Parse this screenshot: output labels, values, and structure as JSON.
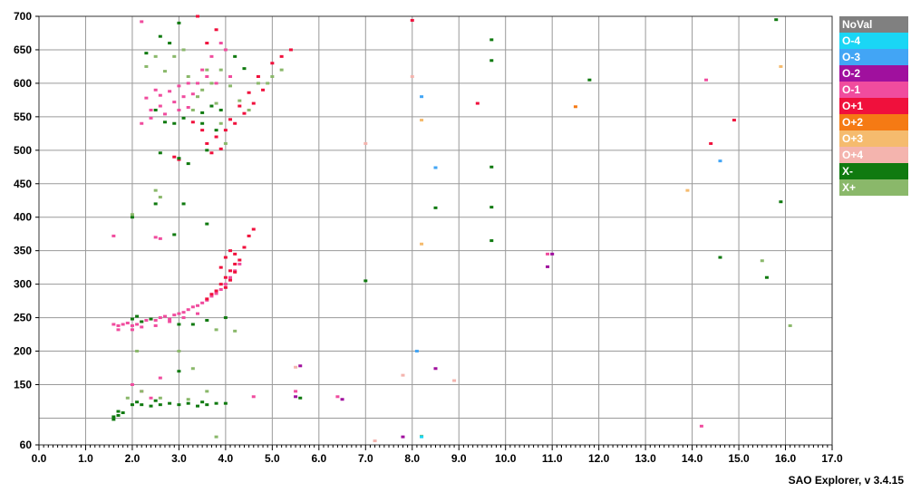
{
  "chart_data": {
    "type": "scatter",
    "title": "",
    "xlabel": "",
    "ylabel": "",
    "xlim": [
      0,
      17
    ],
    "ylim": [
      60,
      700
    ],
    "grid": true,
    "legend_placement": "right",
    "x_ticks": [
      0,
      1,
      2,
      3,
      4,
      5,
      6,
      7,
      8,
      9,
      10,
      11,
      12,
      13,
      14,
      15,
      16,
      17
    ],
    "x_tick_labels": [
      "0.0",
      "1.0",
      "2.0",
      "3.0",
      "4.0",
      "5.0",
      "6.0",
      "7.0",
      "8.0",
      "9.0",
      "10.0",
      "11.0",
      "12.0",
      "13.0",
      "14.0",
      "15.0",
      "16.0",
      "17.0"
    ],
    "y_ticks": [
      60,
      150,
      200,
      250,
      300,
      350,
      400,
      450,
      500,
      550,
      600,
      650,
      700
    ],
    "y_tick_labels": [
      "60",
      "150",
      "200",
      "250",
      "300",
      "350",
      "400",
      "450",
      "500",
      "550",
      "600",
      "650",
      "700"
    ],
    "y_grid": [
      100,
      150,
      200,
      250,
      300,
      350,
      400,
      450,
      500,
      550,
      600,
      650
    ],
    "legend": [
      {
        "label": "NoVal",
        "color": "#808080"
      },
      {
        "label": "O-4",
        "color": "#1ad6f5"
      },
      {
        "label": "O-3",
        "color": "#42a5f5"
      },
      {
        "label": "O-2",
        "color": "#a0109e"
      },
      {
        "label": "O-1",
        "color": "#f04c9e"
      },
      {
        "label": "O+1",
        "color": "#f0103c"
      },
      {
        "label": "O+2",
        "color": "#f57a14"
      },
      {
        "label": "O+3",
        "color": "#f5bb6e"
      },
      {
        "label": "O+4",
        "color": "#f4b4ae"
      },
      {
        "label": "X-",
        "color": "#107a10"
      },
      {
        "label": "X+",
        "color": "#8ab86a"
      }
    ],
    "series": [
      {
        "name": "O-1",
        "color": "#f04c9e",
        "points": [
          [
            1.6,
            240
          ],
          [
            1.7,
            238
          ],
          [
            1.8,
            240
          ],
          [
            1.9,
            242
          ],
          [
            2.0,
            238
          ],
          [
            2.1,
            240
          ],
          [
            2.2,
            244
          ],
          [
            2.3,
            246
          ],
          [
            2.4,
            248
          ],
          [
            2.5,
            246
          ],
          [
            2.6,
            250
          ],
          [
            2.7,
            252
          ],
          [
            2.8,
            248
          ],
          [
            2.9,
            254
          ],
          [
            3.0,
            256
          ],
          [
            3.1,
            258
          ],
          [
            3.2,
            262
          ],
          [
            3.3,
            266
          ],
          [
            3.4,
            268
          ],
          [
            3.5,
            272
          ],
          [
            3.6,
            276
          ],
          [
            3.7,
            282
          ],
          [
            3.8,
            286
          ],
          [
            3.9,
            292
          ],
          [
            4.0,
            300
          ],
          [
            4.1,
            310
          ],
          [
            4.2,
            320
          ],
          [
            4.3,
            330
          ],
          [
            2.2,
            236
          ],
          [
            2.5,
            238
          ],
          [
            2.8,
            244
          ],
          [
            3.1,
            250
          ],
          [
            3.4,
            256
          ],
          [
            1.7,
            232
          ],
          [
            2.0,
            232
          ],
          [
            2.3,
            578
          ],
          [
            2.5,
            590
          ],
          [
            2.6,
            582
          ],
          [
            2.8,
            588
          ],
          [
            3.0,
            596
          ],
          [
            3.2,
            600
          ],
          [
            2.4,
            560
          ],
          [
            2.6,
            566
          ],
          [
            2.9,
            572
          ],
          [
            3.1,
            580
          ],
          [
            3.3,
            584
          ],
          [
            3.5,
            620
          ],
          [
            3.7,
            640
          ],
          [
            3.9,
            660
          ],
          [
            4.0,
            650
          ],
          [
            3.8,
            600
          ],
          [
            4.1,
            610
          ],
          [
            2.2,
            540
          ],
          [
            2.4,
            548
          ],
          [
            2.7,
            554
          ],
          [
            3.0,
            560
          ],
          [
            3.2,
            564
          ],
          [
            3.6,
            610
          ],
          [
            3.4,
            600
          ],
          [
            2.0,
            150
          ],
          [
            2.2,
            140
          ],
          [
            2.4,
            130
          ],
          [
            2.6,
            160
          ],
          [
            1.6,
            372
          ],
          [
            2.2,
            692
          ],
          [
            4.6,
            132
          ],
          [
            5.5,
            140
          ],
          [
            6.4,
            132
          ],
          [
            14.3,
            605
          ],
          [
            14.2,
            88
          ],
          [
            10.9,
            345
          ],
          [
            2.5,
            370
          ],
          [
            2.6,
            368
          ]
        ]
      },
      {
        "name": "O+1",
        "color": "#f0103c",
        "points": [
          [
            3.8,
            290
          ],
          [
            3.9,
            300
          ],
          [
            4.0,
            310
          ],
          [
            4.1,
            320
          ],
          [
            4.2,
            330
          ],
          [
            4.0,
            340
          ],
          [
            4.1,
            350
          ],
          [
            4.2,
            345
          ],
          [
            3.9,
            325
          ],
          [
            4.0,
            295
          ],
          [
            3.7,
            285
          ],
          [
            4.3,
            336
          ],
          [
            4.1,
            306
          ],
          [
            4.4,
            355
          ],
          [
            4.5,
            372
          ],
          [
            4.6,
            382
          ],
          [
            3.6,
            278
          ],
          [
            4.2,
            318
          ],
          [
            3.6,
            510
          ],
          [
            3.8,
            520
          ],
          [
            4.0,
            530
          ],
          [
            4.2,
            540
          ],
          [
            4.4,
            555
          ],
          [
            4.6,
            570
          ],
          [
            4.8,
            590
          ],
          [
            3.7,
            496
          ],
          [
            4.1,
            546
          ],
          [
            4.3,
            566
          ],
          [
            4.5,
            586
          ],
          [
            3.9,
            502
          ],
          [
            4.7,
            610
          ],
          [
            5.0,
            630
          ],
          [
            5.2,
            640
          ],
          [
            5.4,
            650
          ],
          [
            3.5,
            530
          ],
          [
            3.3,
            542
          ],
          [
            2.9,
            490
          ],
          [
            3.0,
            486
          ],
          [
            3.8,
            680
          ],
          [
            3.6,
            660
          ],
          [
            3.4,
            700
          ],
          [
            14.4,
            510
          ],
          [
            14.9,
            545
          ],
          [
            9.4,
            570
          ],
          [
            8.0,
            694
          ]
        ]
      },
      {
        "name": "X-",
        "color": "#107a10",
        "points": [
          [
            1.6,
            102
          ],
          [
            1.7,
            104
          ],
          [
            1.6,
            98
          ],
          [
            1.7,
            110
          ],
          [
            1.8,
            108
          ],
          [
            2.0,
            120
          ],
          [
            2.2,
            120
          ],
          [
            2.4,
            118
          ],
          [
            2.6,
            120
          ],
          [
            2.8,
            122
          ],
          [
            3.0,
            120
          ],
          [
            3.2,
            122
          ],
          [
            3.4,
            118
          ],
          [
            3.6,
            120
          ],
          [
            3.8,
            122
          ],
          [
            4.0,
            122
          ],
          [
            2.5,
            126
          ],
          [
            3.5,
            124
          ],
          [
            2.1,
            124
          ],
          [
            2.0,
            248
          ],
          [
            2.1,
            252
          ],
          [
            2.2,
            244
          ],
          [
            2.4,
            248
          ],
          [
            3.0,
            240
          ],
          [
            3.3,
            240
          ],
          [
            3.6,
            246
          ],
          [
            4.0,
            250
          ],
          [
            2.5,
            560
          ],
          [
            2.7,
            542
          ],
          [
            2.9,
            540
          ],
          [
            3.1,
            548
          ],
          [
            3.5,
            556
          ],
          [
            3.7,
            566
          ],
          [
            3.9,
            560
          ],
          [
            2.6,
            496
          ],
          [
            3.0,
            488
          ],
          [
            3.2,
            480
          ],
          [
            3.6,
            500
          ],
          [
            3.8,
            530
          ],
          [
            3.5,
            540
          ],
          [
            2.0,
            400
          ],
          [
            2.5,
            420
          ],
          [
            3.1,
            420
          ],
          [
            2.3,
            645
          ],
          [
            2.6,
            670
          ],
          [
            2.8,
            660
          ],
          [
            3.0,
            690
          ],
          [
            4.2,
            640
          ],
          [
            4.4,
            622
          ],
          [
            7.0,
            305
          ],
          [
            9.7,
            365
          ],
          [
            9.7,
            415
          ],
          [
            9.7,
            475
          ],
          [
            9.7,
            634
          ],
          [
            9.7,
            665
          ],
          [
            8.5,
            414
          ],
          [
            11.8,
            605
          ],
          [
            15.6,
            310
          ],
          [
            14.6,
            340
          ],
          [
            15.9,
            423
          ],
          [
            15.8,
            695
          ],
          [
            3.6,
            390
          ],
          [
            2.9,
            374
          ],
          [
            3.0,
            170
          ],
          [
            5.6,
            130
          ]
        ]
      },
      {
        "name": "X+",
        "color": "#8ab86a",
        "points": [
          [
            2.1,
            200
          ],
          [
            2.0,
            404
          ],
          [
            2.5,
            440
          ],
          [
            2.6,
            430
          ],
          [
            2.3,
            625
          ],
          [
            2.5,
            640
          ],
          [
            2.7,
            618
          ],
          [
            2.9,
            640
          ],
          [
            3.1,
            650
          ],
          [
            3.2,
            610
          ],
          [
            3.4,
            580
          ],
          [
            3.5,
            590
          ],
          [
            3.7,
            600
          ],
          [
            3.8,
            570
          ],
          [
            3.9,
            540
          ],
          [
            4.0,
            510
          ],
          [
            3.3,
            560
          ],
          [
            3.6,
            620
          ],
          [
            3.9,
            620
          ],
          [
            4.1,
            596
          ],
          [
            4.3,
            574
          ],
          [
            4.5,
            560
          ],
          [
            4.7,
            600
          ],
          [
            5.0,
            610
          ],
          [
            5.2,
            620
          ],
          [
            4.9,
            600
          ],
          [
            1.9,
            130
          ],
          [
            2.2,
            140
          ],
          [
            2.6,
            130
          ],
          [
            3.2,
            128
          ],
          [
            3.6,
            140
          ],
          [
            3.8,
            72
          ],
          [
            3.3,
            174
          ],
          [
            8.2,
            73
          ],
          [
            15.5,
            335
          ],
          [
            16.1,
            238
          ],
          [
            4.2,
            230
          ],
          [
            3.8,
            232
          ],
          [
            3.0,
            200
          ]
        ]
      },
      {
        "name": "O-2",
        "color": "#a0109e",
        "points": [
          [
            5.5,
            132
          ],
          [
            6.5,
            128
          ],
          [
            8.5,
            174
          ],
          [
            7.8,
            72
          ],
          [
            10.9,
            326
          ],
          [
            11.0,
            345
          ],
          [
            5.6,
            178
          ]
        ]
      },
      {
        "name": "O-3",
        "color": "#42a5f5",
        "points": [
          [
            8.5,
            474
          ],
          [
            8.2,
            580
          ],
          [
            14.6,
            484
          ],
          [
            8.1,
            200
          ]
        ]
      },
      {
        "name": "O-4",
        "color": "#1ad6f5",
        "points": [
          [
            8.2,
            72
          ]
        ]
      },
      {
        "name": "O+2",
        "color": "#f57a14",
        "points": [
          [
            11.5,
            565
          ]
        ]
      },
      {
        "name": "O+3",
        "color": "#f5bb6e",
        "points": [
          [
            8.2,
            360
          ],
          [
            13.9,
            440
          ],
          [
            15.9,
            625
          ],
          [
            8.2,
            545
          ]
        ]
      },
      {
        "name": "O+4",
        "color": "#f4b4ae",
        "points": [
          [
            7.0,
            510
          ],
          [
            5.5,
            176
          ],
          [
            8.0,
            610
          ],
          [
            7.2,
            66
          ],
          [
            7.8,
            164
          ],
          [
            8.9,
            156
          ]
        ]
      }
    ]
  },
  "footer": {
    "version_label": "SAO Explorer, v 3.4.15"
  }
}
